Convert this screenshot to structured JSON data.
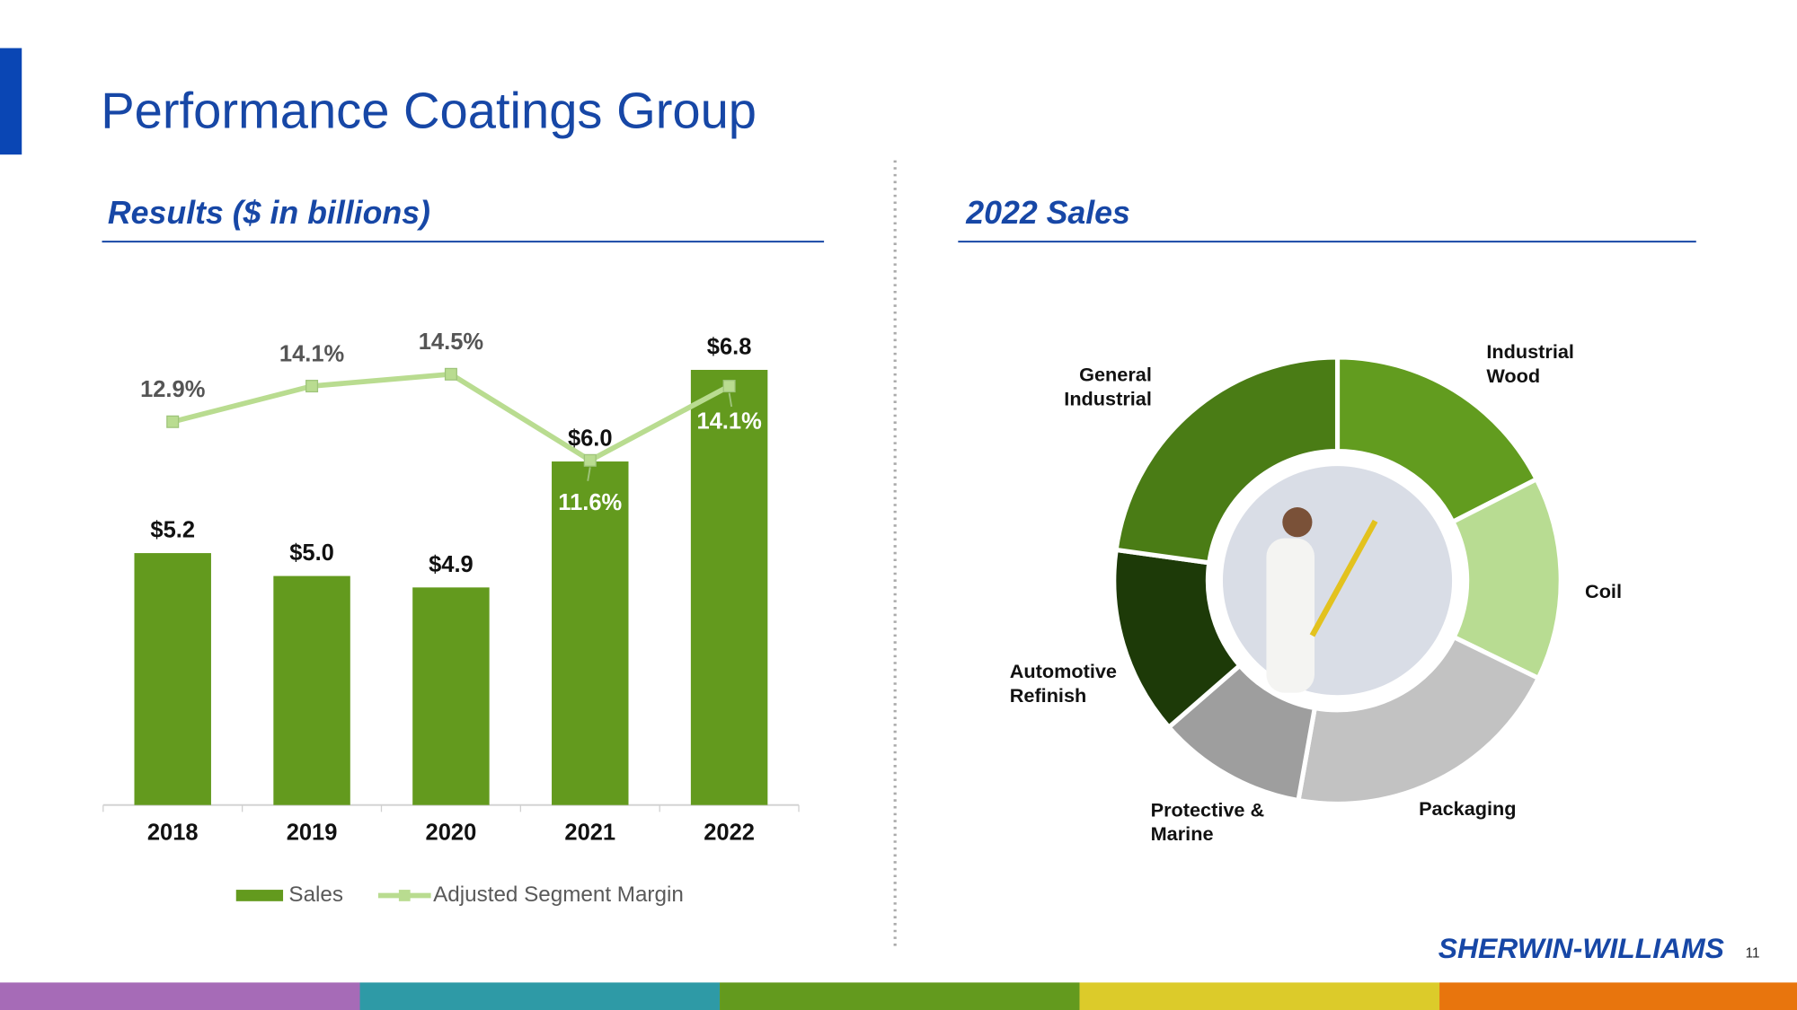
{
  "title": "Performance Coatings Group",
  "logo": "SHERWIN-WILLIAMS",
  "page_number": "11",
  "chart_data": [
    {
      "type": "bar",
      "title": "Results ($ in billions)",
      "categories": [
        "2018",
        "2019",
        "2020",
        "2021",
        "2022"
      ],
      "series": [
        {
          "name": "Sales",
          "color": "#639a1e",
          "values": [
            5.2,
            5.0,
            4.9,
            6.0,
            6.8
          ],
          "value_labels": [
            "$5.2",
            "$5.0",
            "$4.9",
            "$6.0",
            "$6.8"
          ]
        },
        {
          "name": "Adjusted Segment Margin",
          "type": "line",
          "axis": "y2",
          "color": "#b9dc90",
          "values": [
            12.9,
            14.1,
            14.5,
            11.6,
            14.1
          ],
          "value_labels": [
            "12.9%",
            "14.1%",
            "14.5%",
            "11.6%",
            "14.1%"
          ]
        }
      ],
      "ylim": [
        3,
        7.8
      ],
      "y2lim": [
        0,
        18.5
      ],
      "legend": "bottom"
    },
    {
      "type": "pie",
      "title": "2022 Sales",
      "categories": [
        "Industrial Wood",
        "Coil",
        "Packaging",
        "Protective & Marine",
        "Automotive Refinish",
        "General Industrial"
      ],
      "values": [
        17.5,
        14.7,
        20.6,
        10.8,
        13.6,
        22.8
      ],
      "colors": [
        "#629c1f",
        "#b8dc92",
        "#c2c2c2",
        "#9e9e9e",
        "#1d3a08",
        "#4a7c15"
      ]
    }
  ]
}
